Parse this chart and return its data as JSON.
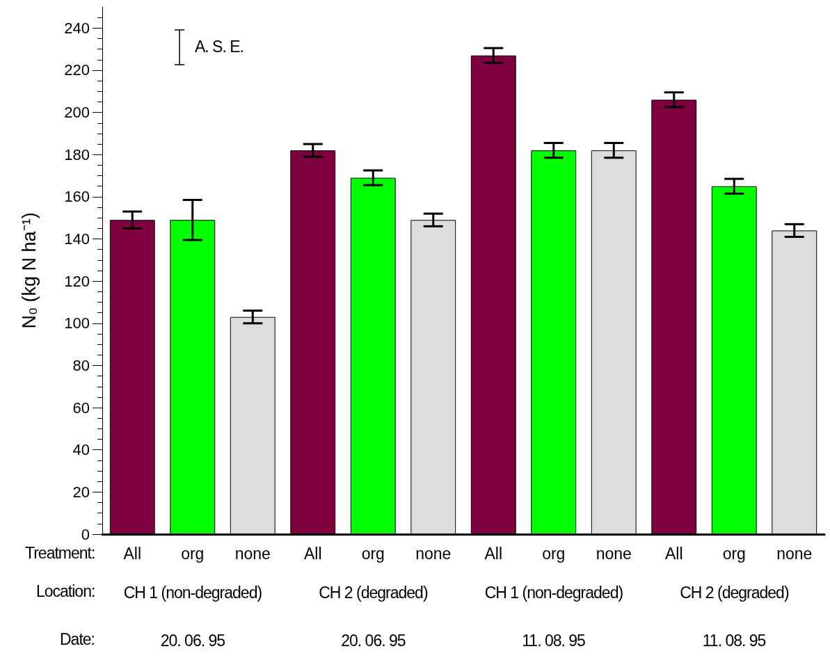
{
  "chart_data": {
    "type": "bar",
    "ylabel": "N₀ (kg N ha⁻¹)",
    "categories": [
      "All",
      "org",
      "none",
      "All",
      "org",
      "none",
      "All",
      "org",
      "none",
      "All",
      "org",
      "none"
    ],
    "values": [
      149,
      149,
      103,
      182,
      169,
      149,
      227,
      182,
      182,
      206,
      165,
      144
    ],
    "errors": [
      4,
      9.5,
      3,
      3,
      3.5,
      3,
      3.5,
      3.5,
      3.5,
      3.5,
      3.5,
      3
    ],
    "colors": [
      "#7f003f",
      "#00ff00",
      "#dddddd",
      "#7f003f",
      "#00ff00",
      "#dddddd",
      "#7f003f",
      "#00ff00",
      "#dddddd",
      "#7f003f",
      "#00ff00",
      "#dddddd"
    ],
    "ylim": [
      0,
      250
    ],
    "yticks": [
      0,
      20,
      40,
      60,
      80,
      100,
      120,
      140,
      160,
      180,
      200,
      220,
      240
    ],
    "annotations": [
      "Treatment:",
      "Location:",
      "Date:",
      "CH 1 (non-degraded)",
      "CH 2 (degraded)",
      "CH 1 (non-degraded)",
      "CH 2 (degraded)",
      "20. 06. 95",
      "20. 06. 95",
      "11. 08. 95",
      "11. 08. 95",
      "A. S. E."
    ]
  }
}
